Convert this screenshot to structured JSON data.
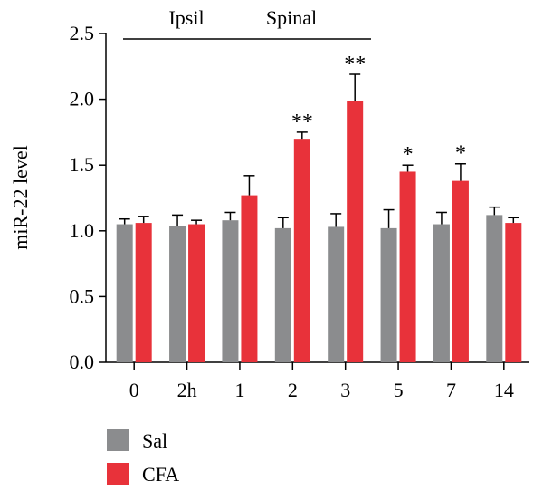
{
  "chart_data": {
    "type": "bar",
    "ylabel": "miR-22 level",
    "xlabel": "",
    "title": "",
    "ylim": [
      0,
      2.5
    ],
    "yticks": [
      "0.0",
      "0.5",
      "1.0",
      "1.5",
      "2.0",
      "2.5"
    ],
    "categories": [
      "0",
      "2h",
      "1",
      "2",
      "3",
      "5",
      "7",
      "14"
    ],
    "series": [
      {
        "name": "Sal",
        "color": "#8b8c8e",
        "values": [
          1.05,
          1.04,
          1.08,
          1.02,
          1.03,
          1.02,
          1.05,
          1.12
        ],
        "errors": [
          0.04,
          0.08,
          0.06,
          0.08,
          0.1,
          0.14,
          0.09,
          0.06
        ]
      },
      {
        "name": "CFA",
        "color": "#e8323a",
        "values": [
          1.06,
          1.05,
          1.27,
          1.7,
          1.99,
          1.45,
          1.38,
          1.06
        ],
        "errors": [
          0.05,
          0.03,
          0.15,
          0.05,
          0.2,
          0.05,
          0.13,
          0.04
        ]
      }
    ],
    "significance": [
      "",
      "",
      "",
      "**",
      "**",
      "*",
      "*",
      ""
    ],
    "annotation": {
      "text_left": "Ipsil",
      "text_right": "Spinal"
    },
    "grid": false,
    "legend_position": "bottom-left"
  }
}
